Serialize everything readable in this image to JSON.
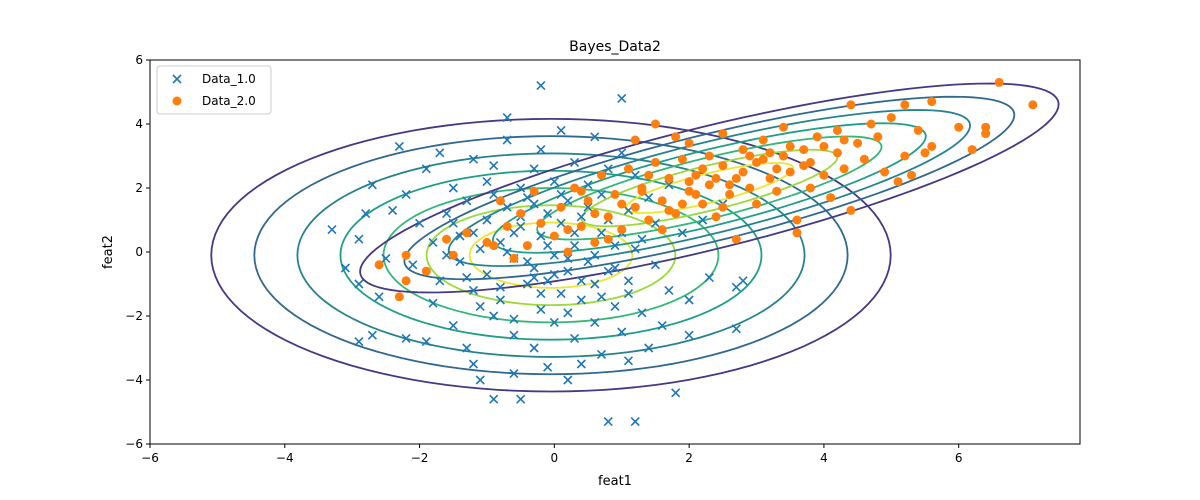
{
  "chart_data": {
    "type": "scatter",
    "title": "Bayes_Data2",
    "xlabel": "feat1",
    "ylabel": "feat2",
    "xlim": [
      -6,
      7.8
    ],
    "ylim": [
      -6,
      6
    ],
    "xticks": [
      -6,
      -4,
      -2,
      0,
      2,
      4,
      6
    ],
    "yticks": [
      -6,
      -4,
      -2,
      0,
      2,
      4,
      6
    ],
    "xtick_labels": [
      "−6",
      "−4",
      "−2",
      "0",
      "2",
      "4",
      "6"
    ],
    "ytick_labels": [
      "−6",
      "−4",
      "−2",
      "0",
      "2",
      "4",
      "6"
    ],
    "grid": false,
    "legend_position": "top-left",
    "series": [
      {
        "name": "Data_1.0",
        "marker": "x",
        "color": "#1f77b4",
        "points": [
          [
            -3.3,
            0.7
          ],
          [
            -3.1,
            -0.5
          ],
          [
            -2.9,
            -1.0
          ],
          [
            -2.9,
            -2.8
          ],
          [
            -2.9,
            0.4
          ],
          [
            -2.8,
            1.2
          ],
          [
            -2.7,
            2.1
          ],
          [
            -2.6,
            -1.4
          ],
          [
            -2.7,
            -2.6
          ],
          [
            -2.5,
            -0.2
          ],
          [
            -2.4,
            1.3
          ],
          [
            -2.3,
            3.3
          ],
          [
            -2.2,
            1.8
          ],
          [
            -2.2,
            -2.7
          ],
          [
            -2.1,
            -0.4
          ],
          [
            -2.0,
            0.9
          ],
          [
            -1.9,
            2.6
          ],
          [
            -1.9,
            -2.8
          ],
          [
            -1.8,
            0.3
          ],
          [
            -1.8,
            -1.6
          ],
          [
            -1.7,
            3.1
          ],
          [
            -1.7,
            -0.9
          ],
          [
            -1.6,
            1.2
          ],
          [
            -1.5,
            -2.3
          ],
          [
            -1.5,
            2.0
          ],
          [
            -1.4,
            0.5
          ],
          [
            -1.4,
            -0.3
          ],
          [
            -1.3,
            -3.0
          ],
          [
            -1.3,
            1.6
          ],
          [
            -1.2,
            2.9
          ],
          [
            -1.2,
            -3.5
          ],
          [
            -1.2,
            -1.2
          ],
          [
            -1.1,
            0.1
          ],
          [
            -1.1,
            -4.0
          ],
          [
            -1.0,
            2.2
          ],
          [
            -1.0,
            -0.7
          ],
          [
            -1.0,
            1.0
          ],
          [
            -0.9,
            -2.0
          ],
          [
            -0.9,
            2.7
          ],
          [
            -0.9,
            -4.6
          ],
          [
            -0.8,
            0.3
          ],
          [
            -0.8,
            -1.5
          ],
          [
            -0.7,
            3.5
          ],
          [
            -0.7,
            4.2
          ],
          [
            -0.7,
            1.4
          ],
          [
            -0.6,
            -0.2
          ],
          [
            -0.6,
            -3.8
          ],
          [
            -0.6,
            -2.6
          ],
          [
            -0.5,
            2.0
          ],
          [
            -0.5,
            0.8
          ],
          [
            -0.5,
            -4.6
          ],
          [
            -0.4,
            -1.0
          ],
          [
            -0.4,
            1.7
          ],
          [
            -0.3,
            2.6
          ],
          [
            -0.3,
            -0.5
          ],
          [
            -0.3,
            -3.0
          ],
          [
            -0.2,
            0.5
          ],
          [
            -0.2,
            -1.8
          ],
          [
            -0.2,
            3.2
          ],
          [
            -0.2,
            5.2
          ],
          [
            -0.1,
            -0.9
          ],
          [
            -0.1,
            1.2
          ],
          [
            -0.1,
            -3.6
          ],
          [
            0.0,
            2.2
          ],
          [
            0.0,
            -0.1
          ],
          [
            0.0,
            -2.2
          ],
          [
            0.1,
            0.9
          ],
          [
            0.1,
            3.8
          ],
          [
            0.1,
            -1.3
          ],
          [
            0.2,
            -4.0
          ],
          [
            0.2,
            1.6
          ],
          [
            0.2,
            -0.6
          ],
          [
            0.3,
            2.8
          ],
          [
            0.3,
            0.2
          ],
          [
            0.3,
            -2.7
          ],
          [
            0.4,
            -1.5
          ],
          [
            0.4,
            1.1
          ],
          [
            0.4,
            -3.5
          ],
          [
            0.5,
            2.1
          ],
          [
            0.5,
            -0.3
          ],
          [
            0.6,
            3.6
          ],
          [
            0.6,
            -1.0
          ],
          [
            0.6,
            -2.2
          ],
          [
            0.7,
            0.6
          ],
          [
            0.7,
            1.8
          ],
          [
            0.7,
            -3.2
          ],
          [
            0.8,
            -5.3
          ],
          [
            0.8,
            -0.6
          ],
          [
            0.8,
            2.6
          ],
          [
            0.9,
            -1.7
          ],
          [
            0.9,
            0.2
          ],
          [
            1.0,
            3.1
          ],
          [
            1.0,
            -2.5
          ],
          [
            1.0,
            4.8
          ],
          [
            1.1,
            1.3
          ],
          [
            1.1,
            -0.9
          ],
          [
            1.1,
            -3.4
          ],
          [
            1.2,
            2.4
          ],
          [
            1.2,
            -5.3
          ],
          [
            1.3,
            0.4
          ],
          [
            1.3,
            -1.9
          ],
          [
            1.4,
            -3.0
          ],
          [
            1.4,
            1.7
          ],
          [
            1.5,
            0.9
          ],
          [
            1.5,
            -0.4
          ],
          [
            1.6,
            -2.3
          ],
          [
            1.7,
            2.1
          ],
          [
            1.7,
            -1.2
          ],
          [
            1.8,
            -4.4
          ],
          [
            1.9,
            0.6
          ],
          [
            2.0,
            -1.5
          ],
          [
            2.0,
            -2.6
          ],
          [
            2.2,
            1.0
          ],
          [
            2.3,
            -0.8
          ],
          [
            2.5,
            1.5
          ],
          [
            2.7,
            -1.1
          ],
          [
            2.7,
            -2.4
          ],
          [
            2.8,
            -0.9
          ],
          [
            -1.6,
            -0.1
          ],
          [
            -1.5,
            0.9
          ],
          [
            -1.3,
            -0.8
          ],
          [
            -1.2,
            0.6
          ],
          [
            -1.1,
            -1.7
          ],
          [
            -0.9,
            1.8
          ],
          [
            -0.8,
            -1.1
          ],
          [
            -0.7,
            0.0
          ],
          [
            -0.6,
            -2.1
          ],
          [
            -0.5,
            1.1
          ],
          [
            -0.4,
            -0.3
          ],
          [
            -0.3,
            1.5
          ],
          [
            -0.2,
            -1.3
          ],
          [
            -0.1,
            0.2
          ],
          [
            0.0,
            -0.7
          ],
          [
            0.1,
            1.8
          ],
          [
            0.2,
            -1.9
          ],
          [
            0.3,
            0.6
          ],
          [
            0.4,
            -0.9
          ],
          [
            0.5,
            1.4
          ],
          [
            0.6,
            -0.1
          ],
          [
            0.7,
            -1.4
          ],
          [
            0.8,
            1.0
          ],
          [
            0.9,
            -0.5
          ],
          [
            1.0,
            0.6
          ],
          [
            1.1,
            -1.3
          ],
          [
            1.2,
            0.1
          ],
          [
            -0.6,
            0.6
          ],
          [
            -0.3,
            -0.8
          ],
          [
            0.2,
            -0.2
          ]
        ]
      },
      {
        "name": "Data_2.0",
        "marker": "o",
        "color": "#ff7f0e",
        "points": [
          [
            -2.6,
            -0.4
          ],
          [
            -2.3,
            -1.4
          ],
          [
            -2.2,
            -0.9
          ],
          [
            -2.2,
            -0.1
          ],
          [
            -1.9,
            -0.6
          ],
          [
            -1.6,
            0.4
          ],
          [
            -1.5,
            -0.1
          ],
          [
            -1.3,
            0.6
          ],
          [
            -1.0,
            0.3
          ],
          [
            -0.8,
            1.6
          ],
          [
            -0.7,
            0.8
          ],
          [
            -0.5,
            1.2
          ],
          [
            -0.4,
            0.2
          ],
          [
            -0.3,
            1.9
          ],
          [
            -0.2,
            0.9
          ],
          [
            0.0,
            0.5
          ],
          [
            0.1,
            1.4
          ],
          [
            0.2,
            0.0
          ],
          [
            0.3,
            2.0
          ],
          [
            0.4,
            0.8
          ],
          [
            0.5,
            1.6
          ],
          [
            0.6,
            0.3
          ],
          [
            0.7,
            2.4
          ],
          [
            0.8,
            1.1
          ],
          [
            0.9,
            1.8
          ],
          [
            1.0,
            0.7
          ],
          [
            1.1,
            2.6
          ],
          [
            1.2,
            1.4
          ],
          [
            1.2,
            3.5
          ],
          [
            1.3,
            2.0
          ],
          [
            1.4,
            1.0
          ],
          [
            1.5,
            2.8
          ],
          [
            1.5,
            4.0
          ],
          [
            1.6,
            1.6
          ],
          [
            1.7,
            2.3
          ],
          [
            1.8,
            3.6
          ],
          [
            1.8,
            1.2
          ],
          [
            1.9,
            2.9
          ],
          [
            2.0,
            1.9
          ],
          [
            2.0,
            3.4
          ],
          [
            2.1,
            2.4
          ],
          [
            2.2,
            1.5
          ],
          [
            2.3,
            3.0
          ],
          [
            2.3,
            2.1
          ],
          [
            2.4,
            1.1
          ],
          [
            2.5,
            2.7
          ],
          [
            2.5,
            3.7
          ],
          [
            2.6,
            1.8
          ],
          [
            2.7,
            2.3
          ],
          [
            2.7,
            0.4
          ],
          [
            2.8,
            3.2
          ],
          [
            2.9,
            2.0
          ],
          [
            3.0,
            2.8
          ],
          [
            3.0,
            1.5
          ],
          [
            3.1,
            3.5
          ],
          [
            3.2,
            2.3
          ],
          [
            3.3,
            1.9
          ],
          [
            3.4,
            3.0
          ],
          [
            3.4,
            3.9
          ],
          [
            3.5,
            2.5
          ],
          [
            3.6,
            1.0
          ],
          [
            3.6,
            0.6
          ],
          [
            3.7,
            3.2
          ],
          [
            3.8,
            2.0
          ],
          [
            3.8,
            2.8
          ],
          [
            3.9,
            3.6
          ],
          [
            4.0,
            2.4
          ],
          [
            4.1,
            1.7
          ],
          [
            4.2,
            3.1
          ],
          [
            4.2,
            3.8
          ],
          [
            4.3,
            2.6
          ],
          [
            4.4,
            4.6
          ],
          [
            4.4,
            1.3
          ],
          [
            4.5,
            3.4
          ],
          [
            4.6,
            2.9
          ],
          [
            4.7,
            4.0
          ],
          [
            4.8,
            3.6
          ],
          [
            4.9,
            2.5
          ],
          [
            5.0,
            4.2
          ],
          [
            5.1,
            2.2
          ],
          [
            5.2,
            3.0
          ],
          [
            5.2,
            4.6
          ],
          [
            5.3,
            2.4
          ],
          [
            5.4,
            3.8
          ],
          [
            5.5,
            3.1
          ],
          [
            5.6,
            4.7
          ],
          [
            5.6,
            3.3
          ],
          [
            6.0,
            3.9
          ],
          [
            6.2,
            3.2
          ],
          [
            6.4,
            3.7
          ],
          [
            6.4,
            3.9
          ],
          [
            6.6,
            5.3
          ],
          [
            7.1,
            4.6
          ],
          [
            1.6,
            0.7
          ],
          [
            2.2,
            2.6
          ],
          [
            2.9,
            3.0
          ],
          [
            3.3,
            2.6
          ],
          [
            1.9,
            1.5
          ],
          [
            2.6,
            2.1
          ],
          [
            3.5,
            3.3
          ],
          [
            0.8,
            0.4
          ],
          [
            1.0,
            1.5
          ],
          [
            1.3,
            1.9
          ],
          [
            1.7,
            1.3
          ],
          [
            2.1,
            1.8
          ],
          [
            2.4,
            2.3
          ],
          [
            2.8,
            2.5
          ],
          [
            3.1,
            2.9
          ],
          [
            3.7,
            2.7
          ],
          [
            4.0,
            3.3
          ],
          [
            0.2,
            0.7
          ],
          [
            0.6,
            1.2
          ],
          [
            1.4,
            2.4
          ],
          [
            2.0,
            2.2
          ],
          [
            3.2,
            3.1
          ],
          [
            4.3,
            3.5
          ],
          [
            -0.9,
            0.2
          ],
          [
            -0.6,
            -0.2
          ],
          [
            0.4,
            1.9
          ],
          [
            2.5,
            1.4
          ]
        ]
      }
    ],
    "contours": [
      {
        "class": "Data_1.0",
        "center": [
          -0.05,
          -0.1
        ],
        "sx": 1.2,
        "sy": 1.42,
        "rho": 0.0,
        "levels": [
          0.12,
          0.24,
          0.37,
          0.5,
          0.63,
          0.76,
          0.9
        ]
      },
      {
        "class": "Data_2.0",
        "center": [
          2.3,
          2.0
        ],
        "sx": 1.46,
        "sy": 0.92,
        "rho": 0.8,
        "levels": [
          0.12,
          0.24,
          0.37,
          0.5,
          0.63,
          0.76,
          0.9
        ]
      }
    ],
    "contour_colors": [
      "#ece532",
      "#9bd93c",
      "#35b779",
      "#1f9e89",
      "#26828e",
      "#31688e",
      "#3e4989",
      "#443983"
    ]
  }
}
